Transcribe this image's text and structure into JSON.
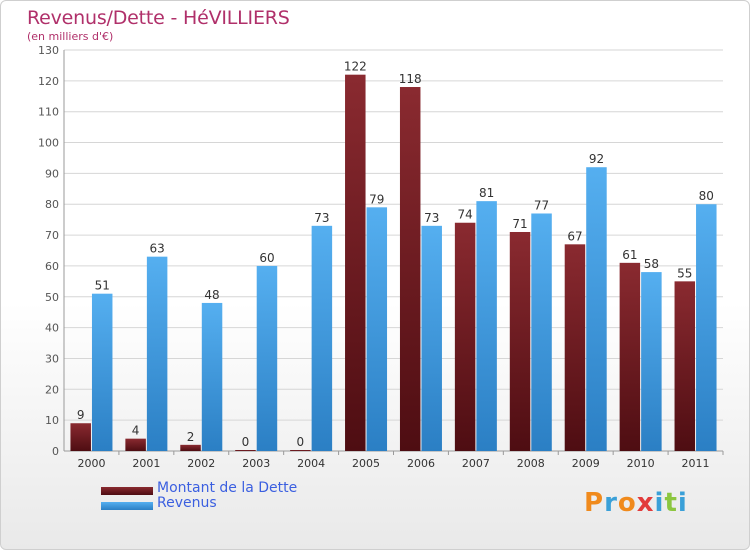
{
  "header": {
    "title": "Revenus/Dette - HéVILLIERS",
    "subtitle": "(en milliers d'€)"
  },
  "chart_data": {
    "type": "bar",
    "categories": [
      "2000",
      "2001",
      "2002",
      "2003",
      "2004",
      "2005",
      "2006",
      "2007",
      "2008",
      "2009",
      "2010",
      "2011"
    ],
    "series": [
      {
        "name": "Montant de la Dette",
        "color": "#7a1e24",
        "values": [
          9,
          4,
          2,
          0,
          0,
          122,
          118,
          74,
          71,
          67,
          61,
          55
        ]
      },
      {
        "name": "Revenus",
        "color": "#3f9be0",
        "values": [
          51,
          63,
          48,
          60,
          73,
          79,
          73,
          81,
          77,
          92,
          58,
          80
        ]
      }
    ],
    "ylim": [
      0,
      130
    ],
    "yticks": [
      0,
      10,
      20,
      30,
      40,
      50,
      60,
      70,
      80,
      90,
      100,
      110,
      120,
      130
    ],
    "grid": true,
    "legend": "bottom-left"
  },
  "logo": {
    "text": "Proxiti",
    "colors": [
      "#f08a1c",
      "#3aa0d8",
      "#f08a1c",
      "#e23b3b",
      "#3aa0d8",
      "#8cc63f",
      "#3aa0d8"
    ]
  }
}
